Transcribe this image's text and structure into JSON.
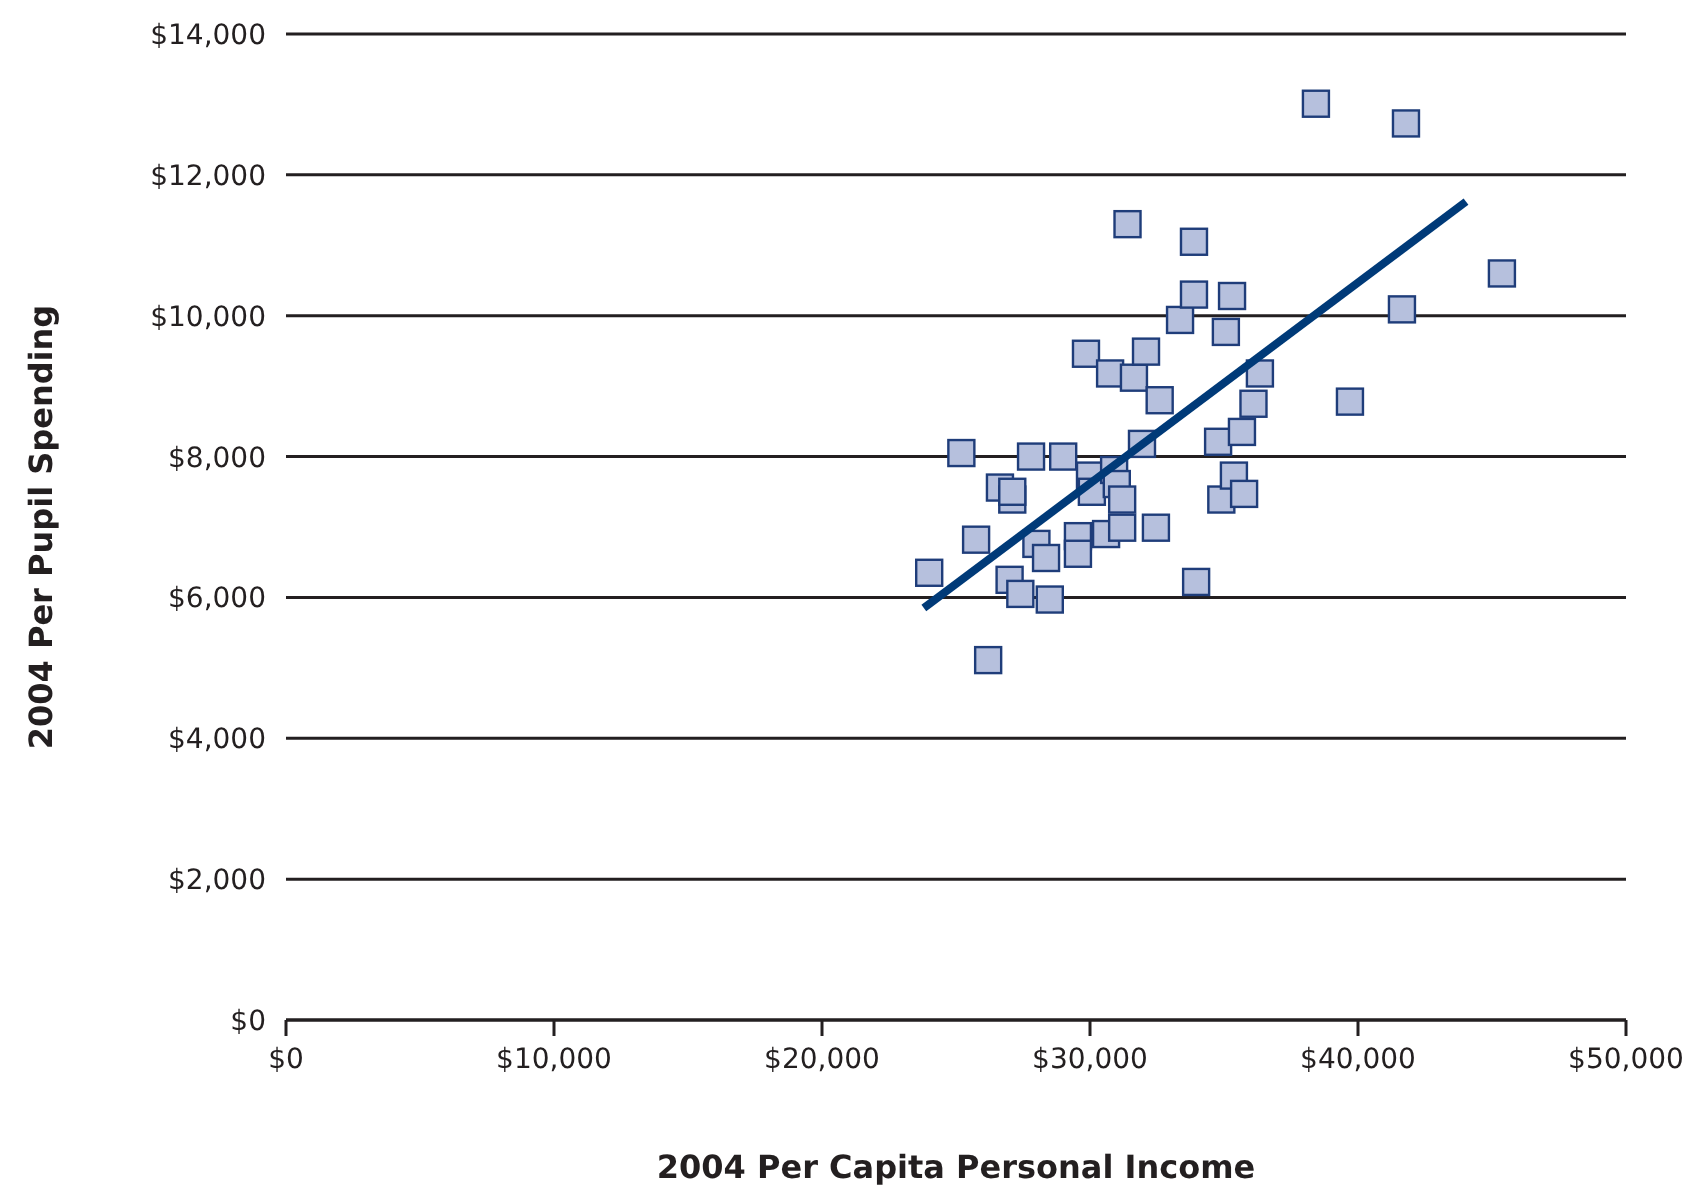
{
  "chart_data": {
    "type": "scatter",
    "xlabel": "2004 Per Capita Personal Income",
    "ylabel": "2004 Per Pupil Spending",
    "xlim": [
      0,
      50000
    ],
    "ylim": [
      0,
      14000
    ],
    "xticks": [
      {
        "value": 0,
        "label": "$0"
      },
      {
        "value": 10000,
        "label": "$10,000"
      },
      {
        "value": 20000,
        "label": "$20,000"
      },
      {
        "value": 30000,
        "label": "$30,000"
      },
      {
        "value": 40000,
        "label": "$40,000"
      },
      {
        "value": 50000,
        "label": "$50,000"
      }
    ],
    "yticks": [
      {
        "value": 0,
        "label": "$0"
      },
      {
        "value": 2000,
        "label": "$2,000"
      },
      {
        "value": 4000,
        "label": "$4,000"
      },
      {
        "value": 6000,
        "label": "$6,000"
      },
      {
        "value": 8000,
        "label": "$8,000"
      },
      {
        "value": 10000,
        "label": "$10,000"
      },
      {
        "value": 12000,
        "label": "$12,000"
      },
      {
        "value": 14000,
        "label": "$14,000"
      }
    ],
    "grid": "y",
    "marker": "square",
    "series": [
      {
        "color": "#b6c0dd",
        "x": [
          24000,
          25200,
          25750,
          26200,
          26640,
          27000,
          27100,
          27100,
          27400,
          27800,
          28000,
          28360,
          28500,
          29000,
          29550,
          29550,
          29850,
          30000,
          30070,
          30600,
          30750,
          30900,
          31000,
          31200,
          31200,
          31400,
          31640,
          31940,
          32090,
          32460,
          32600,
          33360,
          33880,
          33880,
          33960,
          34780,
          34900,
          35070,
          35300,
          35370,
          35670,
          35750,
          36100,
          36340,
          38430,
          39700,
          41790,
          41640,
          45370
        ],
        "values": [
          6350,
          8050,
          6820,
          5110,
          7560,
          6250,
          7390,
          7500,
          6050,
          8000,
          6760,
          6560,
          5970,
          8000,
          6870,
          6620,
          9460,
          7730,
          7500,
          6900,
          9180,
          7810,
          7610,
          7390,
          6990,
          11300,
          9120,
          8180,
          9490,
          6990,
          8800,
          9940,
          11050,
          10300,
          6220,
          8210,
          7390,
          9770,
          10280,
          7730,
          8350,
          7470,
          8750,
          9180,
          13010,
          8780,
          12730,
          10090,
          10600
        ]
      },
      {
        "type": "line",
        "color": "#003a78",
        "line_style": "solid",
        "marker": "none",
        "x": [
          23800,
          44030
        ],
        "values": [
          5850,
          11620
        ]
      }
    ]
  }
}
